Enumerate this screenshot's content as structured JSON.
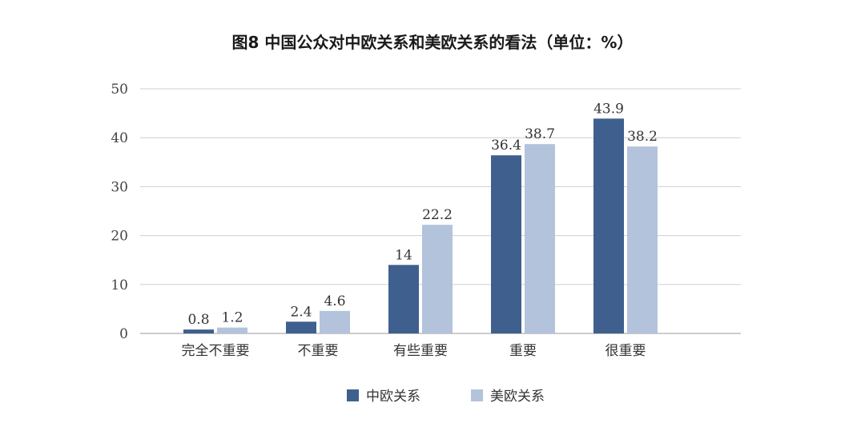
{
  "chart_data": {
    "type": "bar",
    "title": "图8  中国公众对中欧关系和美欧关系的看法（单位：%）",
    "categories": [
      "完全不重要",
      "不重要",
      "有些重要",
      "重要",
      "很重要"
    ],
    "series": [
      {
        "name": "中欧关系",
        "color": "#3f5f8f",
        "values": [
          0.8,
          2.4,
          14,
          36.4,
          43.9
        ],
        "labels": [
          "0.8",
          "2.4",
          "14",
          "36.4",
          "43.9"
        ]
      },
      {
        "name": "美欧关系",
        "color": "#b3c3dc",
        "values": [
          1.2,
          4.6,
          22.2,
          38.7,
          38.2
        ],
        "labels": [
          "1.2",
          "4.6",
          "22.2",
          "38.7",
          "38.2"
        ]
      }
    ],
    "yticks": [
      "0",
      "10",
      "20",
      "30",
      "40",
      "50"
    ],
    "ylim": [
      0,
      50
    ],
    "grid": true,
    "legend_position": "bottom"
  }
}
